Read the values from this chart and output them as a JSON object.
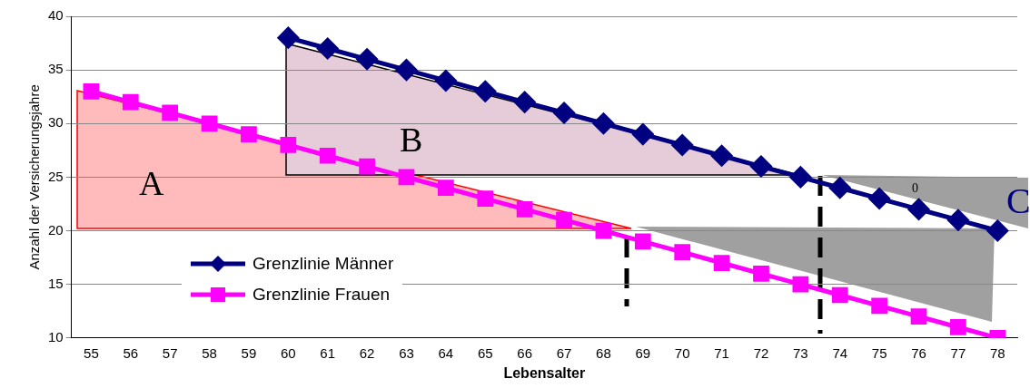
{
  "chart_data": {
    "type": "line",
    "xlabel": "Lebensalter",
    "ylabel": "Anzahl der Versicherungsjahre",
    "categories": [
      "55",
      "56",
      "57",
      "58",
      "59",
      "60",
      "61",
      "62",
      "63",
      "64",
      "65",
      "66",
      "67",
      "68",
      "69",
      "70",
      "71",
      "72",
      "73",
      "74",
      "75",
      "76",
      "77",
      "78"
    ],
    "series": [
      {
        "name": "Grenzlinie Männer",
        "color": "#000080",
        "marker": "diamond",
        "values": [
          null,
          null,
          null,
          null,
          null,
          38,
          37,
          36,
          35,
          34,
          33,
          32,
          31,
          30,
          29,
          28,
          27,
          26,
          25,
          24,
          23,
          22,
          21,
          20
        ]
      },
      {
        "name": "Grenzlinie Frauen",
        "color": "#ff00ff",
        "marker": "square",
        "values": [
          33,
          32,
          31,
          30,
          29,
          28,
          27,
          26,
          25,
          24,
          23,
          22,
          21,
          20,
          19,
          18,
          17,
          16,
          15,
          14,
          13,
          12,
          11,
          10
        ]
      }
    ],
    "ylim": [
      10,
      40
    ],
    "yticks": [
      10,
      15,
      20,
      25,
      30,
      35,
      40
    ],
    "grid": "y",
    "legend": "bottom left",
    "annotations": [
      "A",
      "B",
      "C",
      "0"
    ]
  }
}
